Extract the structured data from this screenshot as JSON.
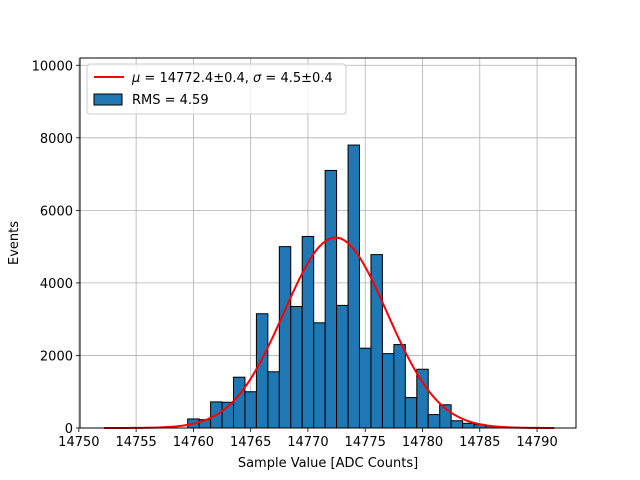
{
  "chart_data": {
    "type": "bar",
    "title": "",
    "xlabel": "Sample Value [ADC Counts]",
    "ylabel": "Events",
    "xlim": [
      14750.1,
      14793.4
    ],
    "ylim": [
      0,
      10200
    ],
    "xticks": [
      14750,
      14755,
      14760,
      14765,
      14770,
      14775,
      14780,
      14785,
      14790
    ],
    "yticks": [
      0,
      2000,
      4000,
      6000,
      8000,
      10000
    ],
    "grid": true,
    "legend_position": "top-left",
    "bin_start": 14759.5,
    "bin_width": 1,
    "values": [
      250,
      230,
      720,
      710,
      1400,
      1000,
      3150,
      1550,
      5000,
      3350,
      5280,
      2900,
      7100,
      3380,
      7800,
      2200,
      4780,
      2050,
      2300,
      840,
      1620,
      370,
      640,
      200,
      130,
      90,
      50
    ],
    "fit": {
      "mu": 14772.4,
      "sigma": 4.5,
      "amplitude": 5250,
      "x_range": [
        14752.2,
        14791.5
      ]
    },
    "series": [
      {
        "name": "$\\mu = 14772.4 \\pm 0.4$, $\\sigma = 4.5 \\pm 0.4$",
        "type": "line",
        "color": "#ff0000"
      },
      {
        "name": "RMS = 4.59",
        "type": "bar",
        "color": "#1f77b4"
      }
    ],
    "legend": [
      {
        "label_parts": [
          [
            "μ",
            true
          ],
          [
            " = 14772.4±0.4, ",
            false
          ],
          [
            "σ",
            true
          ],
          [
            " = 4.5±0.4",
            false
          ]
        ]
      },
      {
        "label_parts": [
          [
            "RMS = 4.59",
            false
          ]
        ]
      }
    ]
  }
}
